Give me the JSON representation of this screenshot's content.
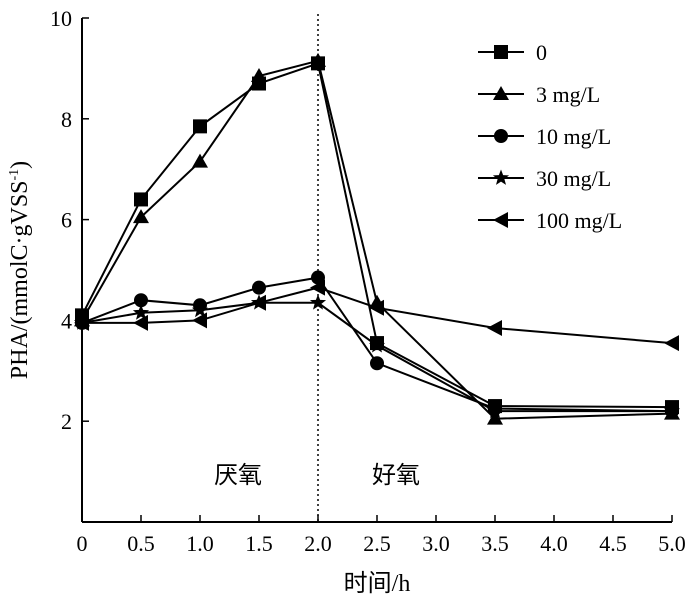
{
  "chart_data": {
    "type": "line",
    "title": "",
    "xlabel": "时间/h",
    "ylabel": "PHA/(mmolC·gVSS",
    "ylabel_sup": "-1",
    "ylabel_close": ")",
    "xlim": [
      0,
      5.0
    ],
    "ylim": [
      0,
      10
    ],
    "x_ticks": [
      "0",
      "0.5",
      "1.0",
      "1.5",
      "2.0",
      "2.5",
      "3.0",
      "3.5",
      "4.0",
      "4.5",
      "5.0"
    ],
    "y_ticks": [
      "2",
      "4",
      "6",
      "8",
      "10"
    ],
    "grid": false,
    "legend_position": "top-right",
    "divider_x": 2.0,
    "regions": [
      {
        "label": "厌氧"
      },
      {
        "label": "好氧"
      }
    ],
    "series": [
      {
        "name": "0",
        "marker": "square",
        "points": [
          [
            0,
            4.1
          ],
          [
            0.5,
            6.4
          ],
          [
            1.0,
            7.85
          ],
          [
            1.5,
            8.7
          ],
          [
            2.0,
            9.1
          ],
          [
            2.5,
            3.55
          ],
          [
            3.5,
            2.3
          ],
          [
            5.0,
            2.28
          ]
        ]
      },
      {
        "name": "3 mg/L",
        "marker": "triangle-up",
        "points": [
          [
            0,
            4.0
          ],
          [
            0.5,
            6.05
          ],
          [
            1.0,
            7.15
          ],
          [
            1.5,
            8.85
          ],
          [
            2.0,
            9.15
          ],
          [
            2.5,
            4.35
          ],
          [
            3.5,
            2.05
          ],
          [
            5.0,
            2.15
          ]
        ]
      },
      {
        "name": "10 mg/L",
        "marker": "circle",
        "points": [
          [
            0,
            3.95
          ],
          [
            0.5,
            4.4
          ],
          [
            1.0,
            4.3
          ],
          [
            1.5,
            4.65
          ],
          [
            2.0,
            4.85
          ],
          [
            2.5,
            3.15
          ],
          [
            3.5,
            2.25
          ],
          [
            5.0,
            2.2
          ]
        ]
      },
      {
        "name": "30 mg/L",
        "marker": "star",
        "points": [
          [
            0,
            3.95
          ],
          [
            0.5,
            4.15
          ],
          [
            1.0,
            4.2
          ],
          [
            1.5,
            4.35
          ],
          [
            2.0,
            4.35
          ],
          [
            2.5,
            3.5
          ],
          [
            3.5,
            2.2
          ],
          [
            5.0,
            2.2
          ]
        ]
      },
      {
        "name": "100 mg/L",
        "marker": "triangle-left",
        "points": [
          [
            0,
            3.95
          ],
          [
            0.5,
            3.95
          ],
          [
            1.0,
            4.0
          ],
          [
            1.5,
            4.35
          ],
          [
            2.0,
            4.65
          ],
          [
            2.5,
            4.25
          ],
          [
            3.5,
            3.85
          ],
          [
            5.0,
            3.55
          ]
        ]
      }
    ]
  }
}
